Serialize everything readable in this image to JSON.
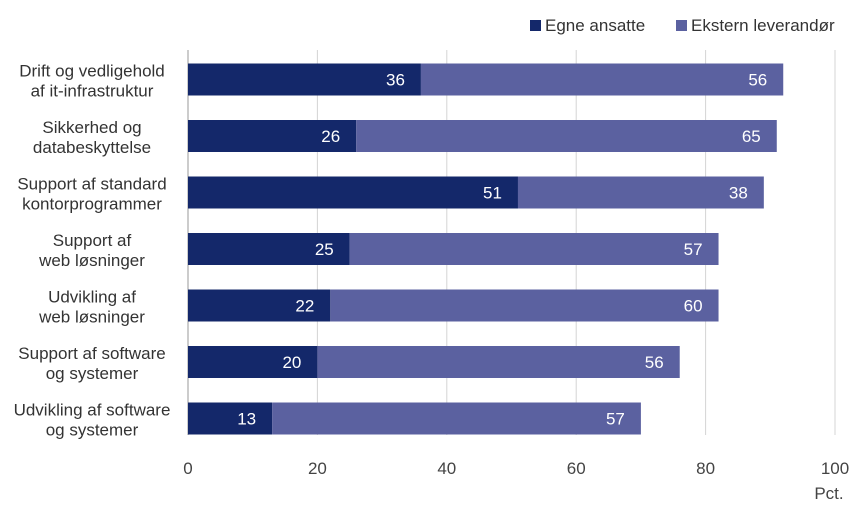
{
  "chart_data": {
    "type": "bar",
    "orientation": "horizontal",
    "stacked": true,
    "categories": [
      [
        "Drift og vedligehold",
        "af it-infrastruktur"
      ],
      [
        "Sikkerhed og",
        "databeskyttelse"
      ],
      [
        "Support af standard",
        "kontorprogrammer"
      ],
      [
        "Support af",
        "web løsninger"
      ],
      [
        "Udvikling af",
        "web løsninger"
      ],
      [
        "Support af software",
        "og systemer"
      ],
      [
        "Udvikling af software",
        "og systemer"
      ]
    ],
    "series": [
      {
        "name": "Egne ansatte",
        "color": "#14286a",
        "values": [
          36,
          26,
          51,
          25,
          22,
          20,
          13
        ]
      },
      {
        "name": "Ekstern leverandør",
        "color": "#5b61a0",
        "values": [
          56,
          65,
          38,
          57,
          60,
          56,
          57
        ]
      }
    ],
    "xlim": [
      0,
      100
    ],
    "xticks": [
      0,
      20,
      40,
      60,
      80,
      100
    ],
    "xlabel": "Pct.",
    "grid": true,
    "legend_position": "top-right"
  }
}
